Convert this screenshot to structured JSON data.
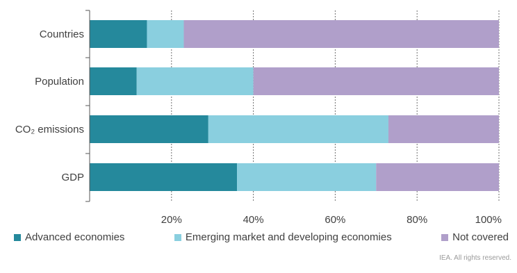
{
  "chart_data": {
    "type": "bar",
    "orientation": "horizontal",
    "stacked": true,
    "title": "",
    "xlabel": "",
    "ylabel": "",
    "categories": [
      "Countries",
      "Population",
      "CO₂ emissions",
      "GDP"
    ],
    "series": [
      {
        "name": "Advanced economies",
        "color": "#25899c",
        "values": [
          14,
          11.5,
          29,
          36
        ]
      },
      {
        "name": "Emerging market and developing economies",
        "color": "#8acfdf",
        "values": [
          9,
          28.5,
          44,
          34
        ]
      },
      {
        "name": "Not covered",
        "color": "#b09fca",
        "values": [
          77,
          60,
          27,
          30
        ]
      }
    ],
    "xlim": [
      0,
      100
    ],
    "xticks": [
      20,
      40,
      60,
      80,
      100
    ],
    "xtick_labels": [
      "20%",
      "40%",
      "60%",
      "80%",
      "100%"
    ],
    "grid": "vertical dashed",
    "legend_position": "bottom"
  },
  "credit": "IEA. All rights reserved."
}
